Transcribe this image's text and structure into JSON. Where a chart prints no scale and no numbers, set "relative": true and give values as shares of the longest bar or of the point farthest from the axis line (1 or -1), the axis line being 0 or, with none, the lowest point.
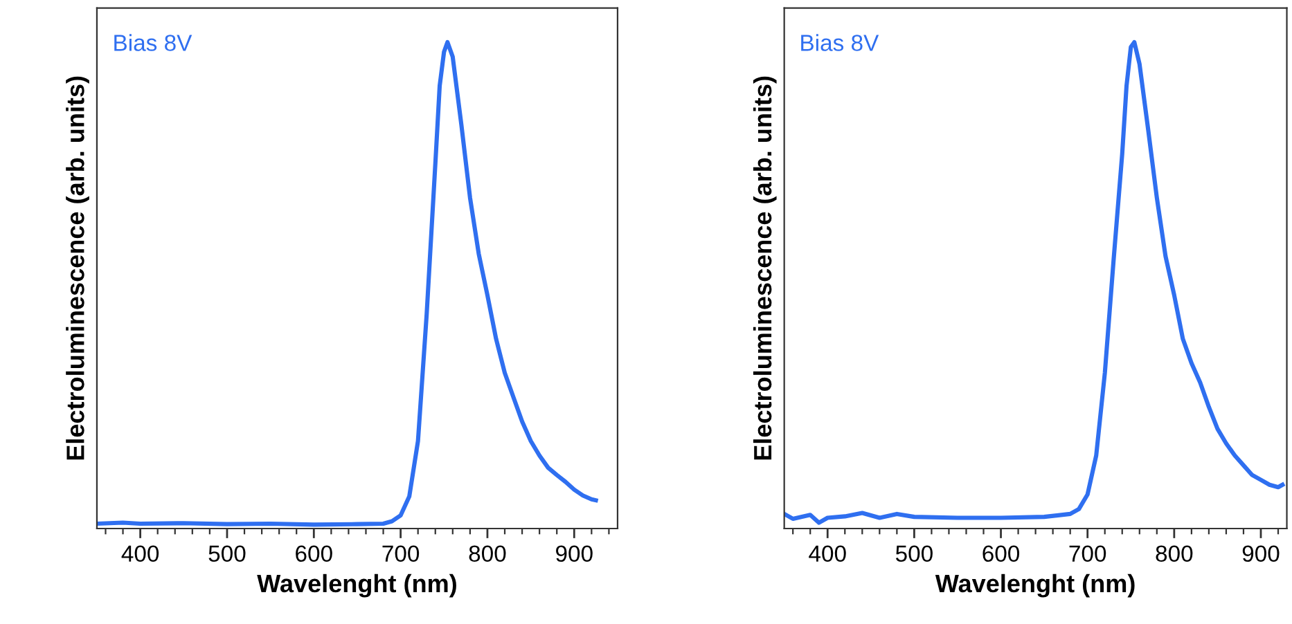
{
  "chart_data": [
    {
      "type": "line",
      "relative": true,
      "xlabel": "Wavelenght (nm)",
      "ylabel": "Electroluminescence (arb. units)",
      "annotations": [
        "Bias 8V"
      ],
      "xlim": [
        350,
        950
      ],
      "xticks": [
        {
          "value": 360,
          "label": null
        },
        {
          "value": 380,
          "label": null
        },
        400,
        {
          "value": 420,
          "label": null
        },
        {
          "value": 440,
          "label": null
        },
        {
          "value": 460,
          "label": null
        },
        {
          "value": 480,
          "label": null
        },
        500,
        {
          "value": 520,
          "label": null
        },
        {
          "value": 540,
          "label": null
        },
        {
          "value": 560,
          "label": null
        },
        {
          "value": 580,
          "label": null
        },
        600,
        {
          "value": 620,
          "label": null
        },
        {
          "value": 640,
          "label": null
        },
        {
          "value": 660,
          "label": null
        },
        {
          "value": 680,
          "label": null
        },
        700,
        {
          "value": 720,
          "label": null
        },
        {
          "value": 740,
          "label": null
        },
        {
          "value": 760,
          "label": null
        },
        {
          "value": 780,
          "label": null
        },
        800,
        {
          "value": 820,
          "label": null
        },
        {
          "value": 840,
          "label": null
        },
        {
          "value": 860,
          "label": null
        },
        {
          "value": 880,
          "label": null
        },
        900,
        {
          "value": 920,
          "label": null
        },
        {
          "value": 940,
          "label": null
        }
      ],
      "tick_labels": "x",
      "grid": false,
      "legend": false,
      "marker": "none",
      "line_style": "solid",
      "series": [
        {
          "color": "#2f6ff0",
          "x": [
            350,
            380,
            400,
            450,
            500,
            550,
            600,
            650,
            680,
            690,
            700,
            710,
            720,
            730,
            740,
            745,
            750,
            754,
            760,
            770,
            780,
            790,
            800,
            810,
            820,
            830,
            840,
            850,
            860,
            870,
            880,
            890,
            900,
            910,
            920,
            925
          ],
          "values": [
            0.01,
            0.012,
            0.01,
            0.011,
            0.009,
            0.01,
            0.008,
            0.009,
            0.01,
            0.015,
            0.027,
            0.066,
            0.18,
            0.44,
            0.75,
            0.91,
            0.98,
            1.0,
            0.97,
            0.83,
            0.68,
            0.565,
            0.48,
            0.39,
            0.32,
            0.27,
            0.22,
            0.18,
            0.15,
            0.125,
            0.11,
            0.096,
            0.08,
            0.068,
            0.06,
            0.058
          ]
        }
      ]
    },
    {
      "type": "line",
      "relative": true,
      "xlabel": "Wavelenght (nm)",
      "ylabel": "Electroluminescence (arb. units)",
      "annotations": [
        "Bias 8V"
      ],
      "xlim": [
        350,
        930
      ],
      "xticks": [
        {
          "value": 360,
          "label": null
        },
        {
          "value": 380,
          "label": null
        },
        400,
        {
          "value": 420,
          "label": null
        },
        {
          "value": 440,
          "label": null
        },
        {
          "value": 460,
          "label": null
        },
        {
          "value": 480,
          "label": null
        },
        500,
        {
          "value": 520,
          "label": null
        },
        {
          "value": 540,
          "label": null
        },
        {
          "value": 560,
          "label": null
        },
        {
          "value": 580,
          "label": null
        },
        600,
        {
          "value": 620,
          "label": null
        },
        {
          "value": 640,
          "label": null
        },
        {
          "value": 660,
          "label": null
        },
        {
          "value": 680,
          "label": null
        },
        700,
        {
          "value": 720,
          "label": null
        },
        {
          "value": 740,
          "label": null
        },
        {
          "value": 760,
          "label": null
        },
        {
          "value": 780,
          "label": null
        },
        800,
        {
          "value": 820,
          "label": null
        },
        {
          "value": 840,
          "label": null
        },
        {
          "value": 860,
          "label": null
        },
        {
          "value": 880,
          "label": null
        },
        900,
        {
          "value": 920,
          "label": null
        }
      ],
      "tick_labels": "x",
      "grid": false,
      "legend": false,
      "marker": "none",
      "line_style": "solid",
      "series": [
        {
          "color": "#2f6ff0",
          "x": [
            350,
            360,
            380,
            390,
            400,
            420,
            440,
            460,
            480,
            500,
            550,
            600,
            650,
            680,
            690,
            700,
            710,
            720,
            730,
            740,
            745,
            750,
            754,
            760,
            770,
            780,
            790,
            800,
            810,
            820,
            830,
            840,
            850,
            860,
            870,
            880,
            890,
            900,
            910,
            920,
            925
          ],
          "values": [
            0.03,
            0.02,
            0.028,
            0.012,
            0.022,
            0.025,
            0.032,
            0.022,
            0.03,
            0.024,
            0.022,
            0.022,
            0.024,
            0.03,
            0.04,
            0.07,
            0.15,
            0.32,
            0.55,
            0.77,
            0.91,
            0.99,
            1.0,
            0.955,
            0.82,
            0.68,
            0.56,
            0.48,
            0.39,
            0.34,
            0.3,
            0.25,
            0.205,
            0.175,
            0.15,
            0.13,
            0.11,
            0.1,
            0.09,
            0.085,
            0.09
          ]
        }
      ]
    }
  ]
}
